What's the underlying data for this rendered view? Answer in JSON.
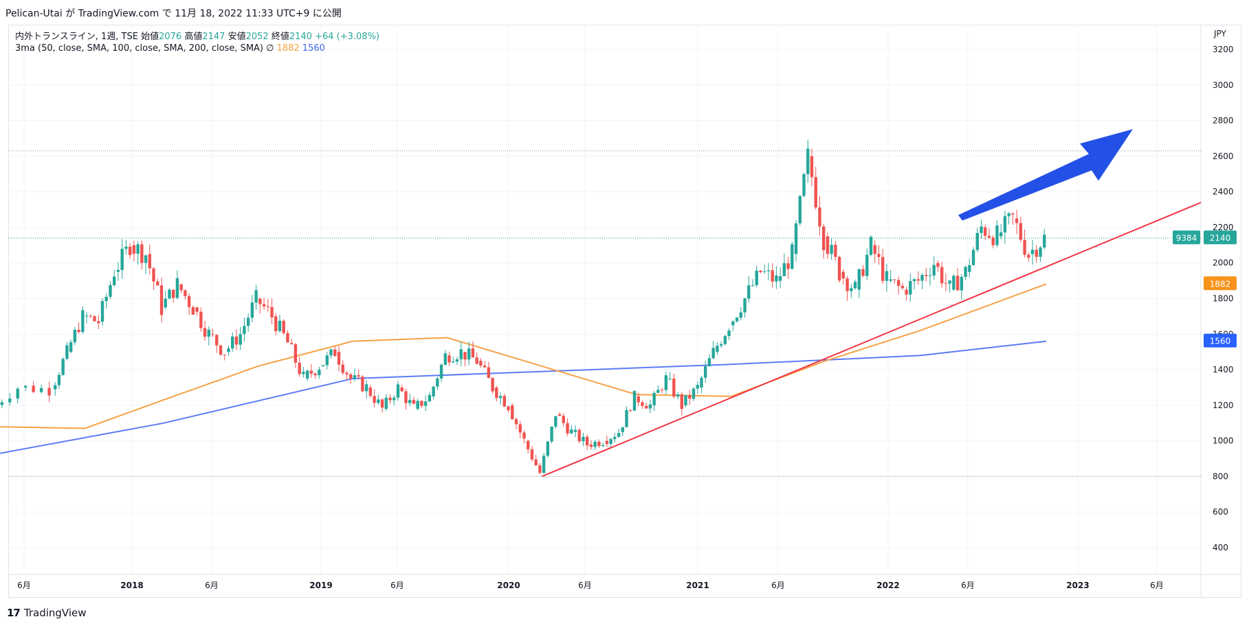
{
  "header": {
    "publish_text": "Pelican-Utai が TradingView.com で 11月 18, 2022 11:33 UTC+9 に公開"
  },
  "legend": {
    "symbol": "内外トランスライン, 1週, TSE",
    "open_label": "始値",
    "open_value": "2076",
    "high_label": "高値",
    "high_value": "2147",
    "low_label": "安値",
    "low_value": "2052",
    "close_label": "終値",
    "close_value": "2140",
    "change": "+64 (+3.08%)",
    "indicator": "3ma (50, close, SMA, 100, close, SMA, 200, close, SMA)",
    "indicator_icon": "∅",
    "ma100_value": "1882",
    "ma200_value": "1560"
  },
  "price_axis": {
    "currency": "JPY",
    "labels": [
      "3200",
      "3000",
      "2800",
      "2600",
      "2400",
      "2200",
      "2000",
      "1800",
      "1600",
      "1400",
      "1200",
      "1000",
      "800",
      "600",
      "400"
    ]
  },
  "badges": {
    "volume": "9384",
    "last_price": "2140",
    "ma100": "1882",
    "ma200": "1560"
  },
  "time_axis": {
    "labels": [
      "6月",
      "2018",
      "6月",
      "2019",
      "6月",
      "2020",
      "6月",
      "2021",
      "6月",
      "2022",
      "6月",
      "2023",
      "6月"
    ]
  },
  "footer": {
    "brand": "TradingView",
    "logo_icon": "tradingview-logo-icon"
  },
  "colors": {
    "up": "#26a69a",
    "down": "#ef5350",
    "ma100": "#f7a144",
    "ma200": "#5b7cf5",
    "trendline": "#f23645",
    "arrow": "#2350e6",
    "last_price_badge": "#26a69a",
    "ma100_badge": "#f7931a",
    "ma200_badge": "#2962ff"
  },
  "chart_data": {
    "type": "candlestick",
    "symbol": "内外トランスライン",
    "interval": "1週",
    "exchange": "TSE",
    "ylim": [
      250,
      3300
    ],
    "ylabel": "JPY",
    "grid": true,
    "horizontal_levels": [
      2630,
      800
    ],
    "last_price": 2140,
    "series": [
      {
        "name": "close",
        "points": [
          [
            "2017-04",
            1170
          ],
          [
            "2017-06",
            1300
          ],
          [
            "2017-08",
            1290
          ],
          [
            "2017-09",
            1500
          ],
          [
            "2017-10",
            1700
          ],
          [
            "2017-11",
            1670
          ],
          [
            "2017-12",
            1950
          ],
          [
            "2018-01",
            2100
          ],
          [
            "2018-02",
            2050
          ],
          [
            "2018-03",
            1750
          ],
          [
            "2018-04",
            1880
          ],
          [
            "2018-05",
            1750
          ],
          [
            "2018-06",
            1600
          ],
          [
            "2018-07",
            1500
          ],
          [
            "2018-08",
            1600
          ],
          [
            "2018-09",
            1800
          ],
          [
            "2018-10",
            1700
          ],
          [
            "2018-11",
            1550
          ],
          [
            "2018-12",
            1350
          ],
          [
            "2019-01",
            1420
          ],
          [
            "2019-02",
            1500
          ],
          [
            "2019-03",
            1350
          ],
          [
            "2019-04",
            1300
          ],
          [
            "2019-05",
            1180
          ],
          [
            "2019-06",
            1300
          ],
          [
            "2019-07",
            1180
          ],
          [
            "2019-08",
            1250
          ],
          [
            "2019-09",
            1480
          ],
          [
            "2019-10",
            1500
          ],
          [
            "2019-11",
            1450
          ],
          [
            "2019-12",
            1300
          ],
          [
            "2020-01",
            1200
          ],
          [
            "2020-02",
            1000
          ],
          [
            "2020-03",
            820
          ],
          [
            "2020-04",
            1150
          ],
          [
            "2020-05",
            1050
          ],
          [
            "2020-06",
            980
          ],
          [
            "2020-07",
            1000
          ],
          [
            "2020-08",
            1050
          ],
          [
            "2020-09",
            1250
          ],
          [
            "2020-10",
            1200
          ],
          [
            "2020-11",
            1350
          ],
          [
            "2020-12",
            1200
          ],
          [
            "2021-01",
            1300
          ],
          [
            "2021-02",
            1500
          ],
          [
            "2021-03",
            1650
          ],
          [
            "2021-04",
            1800
          ],
          [
            "2021-05",
            1950
          ],
          [
            "2021-06",
            1900
          ],
          [
            "2021-07",
            2050
          ],
          [
            "2021-08",
            2600
          ],
          [
            "2021-09",
            2150
          ],
          [
            "2021-10",
            1950
          ],
          [
            "2021-11",
            1850
          ],
          [
            "2021-12",
            2100
          ],
          [
            "2022-01",
            1900
          ],
          [
            "2022-02",
            1850
          ],
          [
            "2022-03",
            1900
          ],
          [
            "2022-04",
            2000
          ],
          [
            "2022-05",
            1850
          ],
          [
            "2022-06",
            1950
          ],
          [
            "2022-07",
            2200
          ],
          [
            "2022-08",
            2150
          ],
          [
            "2022-09",
            2250
          ],
          [
            "2022-10",
            2050
          ],
          [
            "2022-11",
            2140
          ]
        ]
      },
      {
        "name": "SMA100",
        "points": [
          [
            "2017-04",
            1080
          ],
          [
            "2017-10",
            1070
          ],
          [
            "2018-03",
            1230
          ],
          [
            "2018-09",
            1420
          ],
          [
            "2019-03",
            1560
          ],
          [
            "2019-09",
            1580
          ],
          [
            "2020-03",
            1420
          ],
          [
            "2020-09",
            1260
          ],
          [
            "2021-03",
            1250
          ],
          [
            "2021-09",
            1450
          ],
          [
            "2022-03",
            1620
          ],
          [
            "2022-11",
            1882
          ]
        ]
      },
      {
        "name": "SMA200",
        "points": [
          [
            "2017-04",
            920
          ],
          [
            "2018-03",
            1100
          ],
          [
            "2019-03",
            1350
          ],
          [
            "2020-03",
            1390
          ],
          [
            "2021-03",
            1430
          ],
          [
            "2022-03",
            1480
          ],
          [
            "2022-11",
            1560
          ]
        ]
      }
    ]
  }
}
